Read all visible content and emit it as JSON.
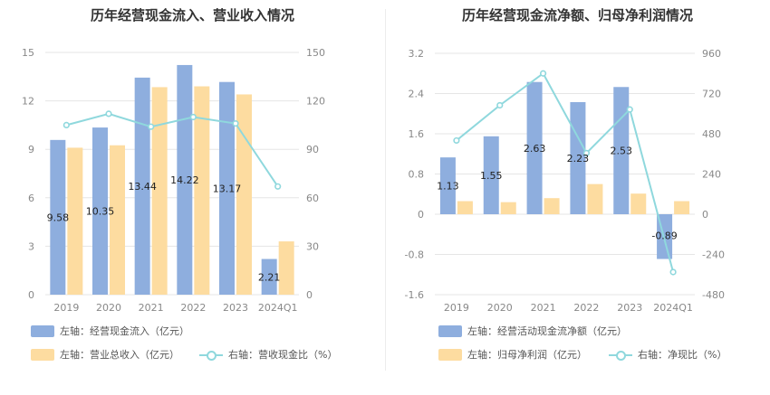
{
  "colors": {
    "bar_primary": "#8eaede",
    "bar_secondary": "#fddca0",
    "line": "#8fd8dd",
    "grid": "#e5e5e5",
    "tick": "#888888"
  },
  "chart_data": [
    {
      "type": "bar",
      "title": "历年经营现金流入、营业收入情况",
      "categories": [
        "2019",
        "2020",
        "2021",
        "2022",
        "2023",
        "2024Q1"
      ],
      "left_axis": {
        "min": 0,
        "max": 15,
        "ticks": [
          "0",
          "3",
          "6",
          "9",
          "12",
          "15"
        ]
      },
      "right_axis": {
        "min": 0,
        "max": 150,
        "ticks": [
          "0",
          "30",
          "60",
          "90",
          "120",
          "150"
        ]
      },
      "series": [
        {
          "name": "左轴：经营现金流入（亿元）",
          "axis": "left",
          "kind": "bar",
          "values": [
            9.58,
            10.35,
            13.44,
            14.22,
            13.17,
            2.21
          ],
          "labels": [
            "9.58",
            "10.35",
            "13.44",
            "14.22",
            "13.17",
            "2.21"
          ]
        },
        {
          "name": "左轴：营业总收入（亿元）",
          "axis": "left",
          "kind": "bar",
          "values": [
            9.1,
            9.25,
            12.85,
            12.9,
            12.4,
            3.3
          ]
        },
        {
          "name": "右轴：营收现金比（%）",
          "axis": "right",
          "kind": "line",
          "values": [
            105,
            112,
            104,
            110,
            106,
            67
          ]
        }
      ],
      "legend": [
        {
          "label": "左轴：经营现金流入（亿元）",
          "type": "bar_primary"
        },
        {
          "label": "左轴：营业总收入（亿元）",
          "type": "bar_secondary"
        },
        {
          "label": "右轴：营收现金比（%）",
          "type": "line"
        }
      ]
    },
    {
      "type": "bar",
      "title": "历年经营现金流净额、归母净利润情况",
      "categories": [
        "2019",
        "2020",
        "2021",
        "2022",
        "2023",
        "2024Q1"
      ],
      "left_axis": {
        "min": -1.6,
        "max": 3.2,
        "ticks": [
          "-1.6",
          "-0.8",
          "0",
          "0.8",
          "1.6",
          "2.4",
          "3.2"
        ]
      },
      "right_axis": {
        "min": -480,
        "max": 960,
        "ticks": [
          "-480",
          "-240",
          "0",
          "240",
          "480",
          "720",
          "960"
        ]
      },
      "series": [
        {
          "name": "左轴：经营活动现金流净额（亿元）",
          "axis": "left",
          "kind": "bar",
          "values": [
            1.13,
            1.55,
            2.63,
            2.23,
            2.53,
            -0.89
          ],
          "labels": [
            "1.13",
            "1.55",
            "2.63",
            "2.23",
            "2.53",
            "-0.89"
          ]
        },
        {
          "name": "左轴：归母净利润（亿元）",
          "axis": "left",
          "kind": "bar",
          "values": [
            0.26,
            0.24,
            0.32,
            0.6,
            0.41,
            0.26
          ]
        },
        {
          "name": "右轴：净现比（%）",
          "axis": "right",
          "kind": "line",
          "values": [
            440,
            650,
            840,
            365,
            625,
            -345
          ]
        }
      ],
      "legend": [
        {
          "label": "左轴：经营活动现金流净额（亿元）",
          "type": "bar_primary"
        },
        {
          "label": "左轴：归母净利润（亿元）",
          "type": "bar_secondary"
        },
        {
          "label": "右轴：净现比（%）",
          "type": "line"
        }
      ]
    }
  ]
}
